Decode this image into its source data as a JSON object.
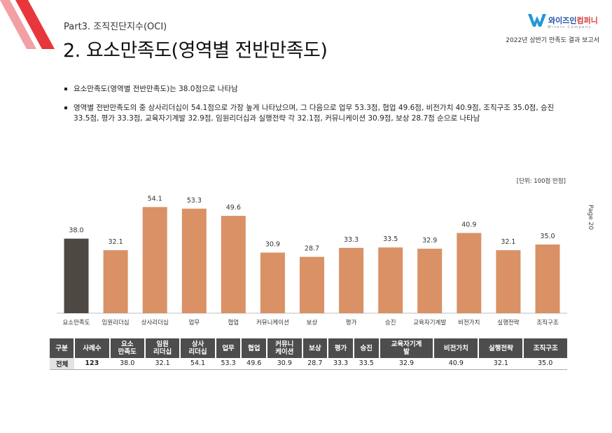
{
  "header": {
    "part_label": "Part3. 조직진단지수(OCI)",
    "title": "2. 요소만족도(영역별 전반만족도)",
    "logo_brand": "와이즈인",
    "logo_brand_accent": "컴퍼니",
    "logo_sub": "Wisein Company",
    "report_name": "2022년 상반기 만족도 결과 보고서",
    "page_label": "Page 20",
    "accent_color": "#e8363d",
    "logo_color": "#1f4fa8"
  },
  "bullets": [
    "요소만족도(영역별 전반만족도)는 38.0점으로 나타남",
    "영역별 전반만족도의 중 상사리더십이 54.1점으로 가장 높게 나타났으며, 그 다음으로 업무 53.3점, 협업 49.6점, 비전가치 40.9점, 조직구조 35.0점, 승진 33.5점, 평가 33.3점, 교육자기계발 32.9점, 임원리더십과 실행전략 각 32.1점, 커뮤니케이션 30.9점, 보상 28.7점 순으로 나타남"
  ],
  "unit_label": "[단위: 100점 만점]",
  "chart_data": {
    "type": "bar",
    "categories": [
      "요소만족도",
      "임원리더십",
      "상사리더십",
      "업무",
      "협업",
      "커뮤니케이션",
      "보상",
      "평가",
      "승진",
      "교육자기계발",
      "비전가치",
      "실행전략",
      "조직구조"
    ],
    "values": [
      38.0,
      32.1,
      54.1,
      53.3,
      49.6,
      30.9,
      28.7,
      33.3,
      33.5,
      32.9,
      40.9,
      32.1,
      35.0
    ],
    "value_labels": [
      "38.0",
      "32.1",
      "54.1",
      "53.3",
      "49.6",
      "30.9",
      "28.7",
      "33.3",
      "33.5",
      "32.9",
      "40.9",
      "32.1",
      "35.0"
    ],
    "colors": {
      "highlight": "#4d4843",
      "default": "#d99165"
    },
    "highlight_index": 0,
    "ylim": [
      0,
      100
    ],
    "grid": false
  },
  "table": {
    "headers": [
      "구분",
      "사례수",
      "요소\n만족도",
      "임원\n리더십",
      "상사\n리더십",
      "업무",
      "협업",
      "커뮤니\n케이션",
      "보상",
      "평가",
      "승진",
      "교육자기계\n발",
      "비전가치",
      "실행전략",
      "조직구조"
    ],
    "rows": [
      [
        "전체",
        "123",
        "38.0",
        "32.1",
        "54.1",
        "53.3",
        "49.6",
        "30.9",
        "28.7",
        "33.3",
        "33.5",
        "32.9",
        "40.9",
        "32.1",
        "35.0"
      ]
    ],
    "header_color": "#4d4d4d"
  }
}
